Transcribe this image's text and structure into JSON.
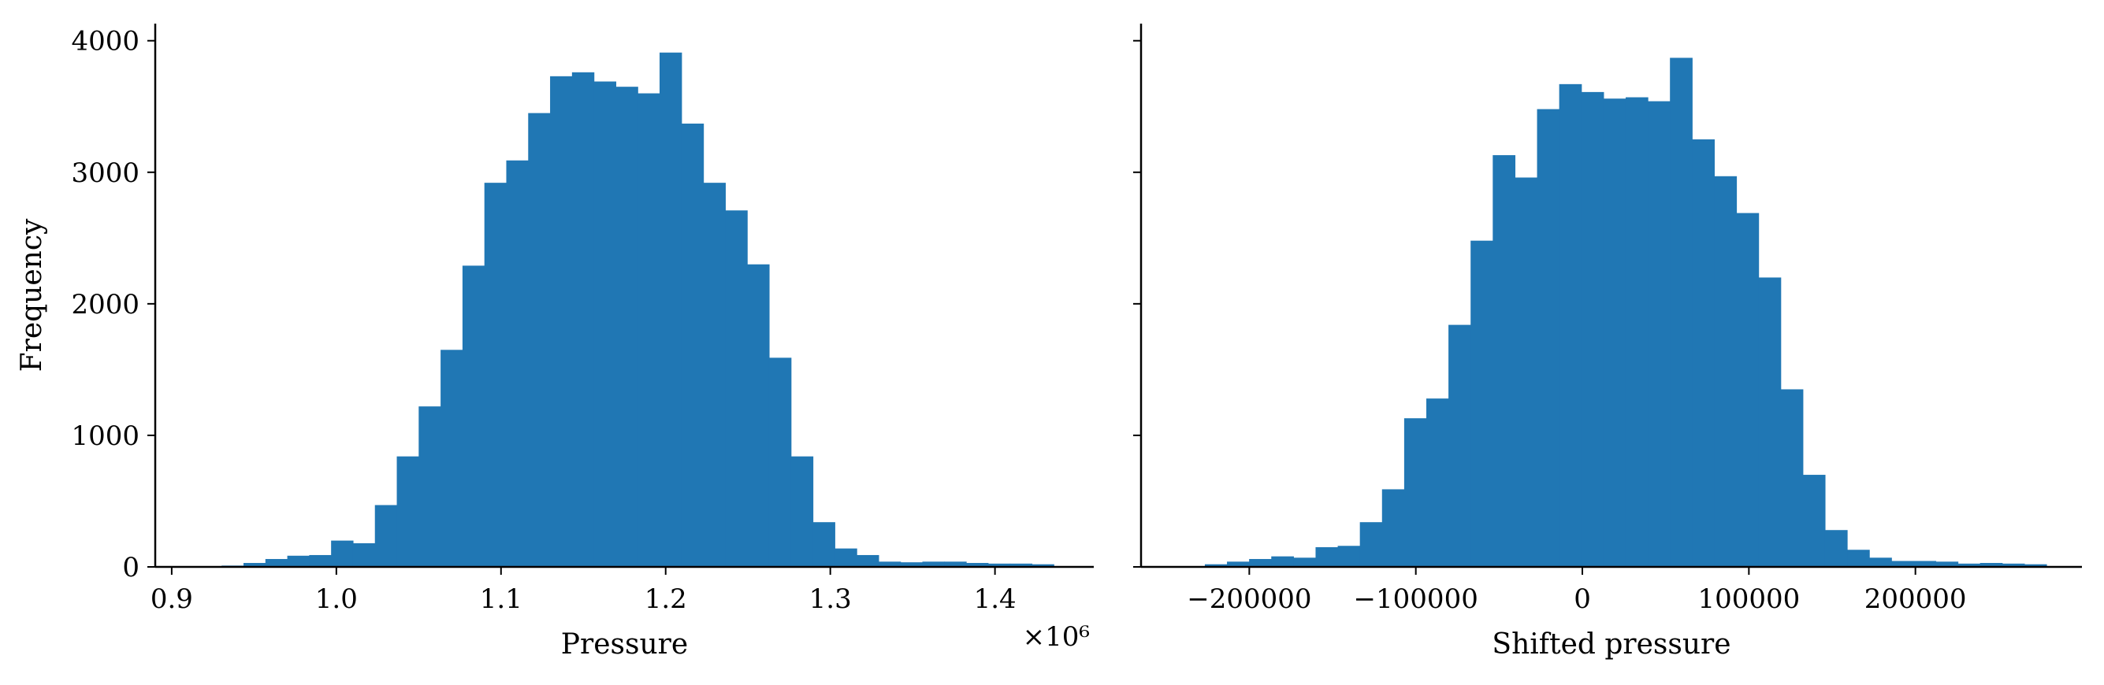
{
  "colors": {
    "bar": "#2077b4",
    "axis": "#000000",
    "background": "#ffffff"
  },
  "chart_data": [
    {
      "type": "bar",
      "title": "",
      "xlabel": "Pressure",
      "ylabel": "Frequency",
      "x_offset_label": "×10⁶",
      "xlim": [
        0.89,
        1.46
      ],
      "ylim": [
        0,
        4130
      ],
      "x_ticks": [
        0.9,
        1.0,
        1.1,
        1.2,
        1.3,
        1.4
      ],
      "x_tick_labels": [
        "0.9",
        "1.0",
        "1.1",
        "1.2",
        "1.3",
        "1.4"
      ],
      "y_ticks": [
        0,
        1000,
        2000,
        3000,
        4000
      ],
      "y_tick_labels": [
        "0",
        "1000",
        "2000",
        "3000",
        "4000"
      ],
      "bin_start": 0.917,
      "bin_width": 0.0133,
      "values": [
        0,
        10,
        30,
        60,
        85,
        90,
        200,
        180,
        470,
        840,
        1220,
        1650,
        2290,
        2920,
        3090,
        3450,
        3730,
        3760,
        3690,
        3650,
        3600,
        3910,
        3370,
        2920,
        2710,
        2300,
        1590,
        840,
        340,
        140,
        90,
        40,
        35,
        40,
        40,
        30,
        25,
        25,
        20,
        0
      ]
    },
    {
      "type": "bar",
      "title": "",
      "xlabel": "Shifted pressure",
      "ylabel": "",
      "xlim": [
        -265000,
        300000
      ],
      "ylim": [
        0,
        4130
      ],
      "x_ticks": [
        -200000,
        -100000,
        0,
        100000,
        200000
      ],
      "x_tick_labels": [
        "−200000",
        "−100000",
        "0",
        "100000",
        "200000"
      ],
      "y_ticks": [
        0,
        1000,
        2000,
        3000,
        4000
      ],
      "bin_start": -240000,
      "bin_width": 13300,
      "values": [
        0,
        20,
        40,
        60,
        80,
        70,
        150,
        160,
        340,
        590,
        1130,
        1280,
        1840,
        2480,
        3130,
        2960,
        3480,
        3670,
        3610,
        3560,
        3570,
        3540,
        3870,
        3250,
        2970,
        2690,
        2200,
        1350,
        700,
        280,
        130,
        70,
        45,
        45,
        40,
        25,
        30,
        25,
        20,
        0
      ]
    }
  ]
}
